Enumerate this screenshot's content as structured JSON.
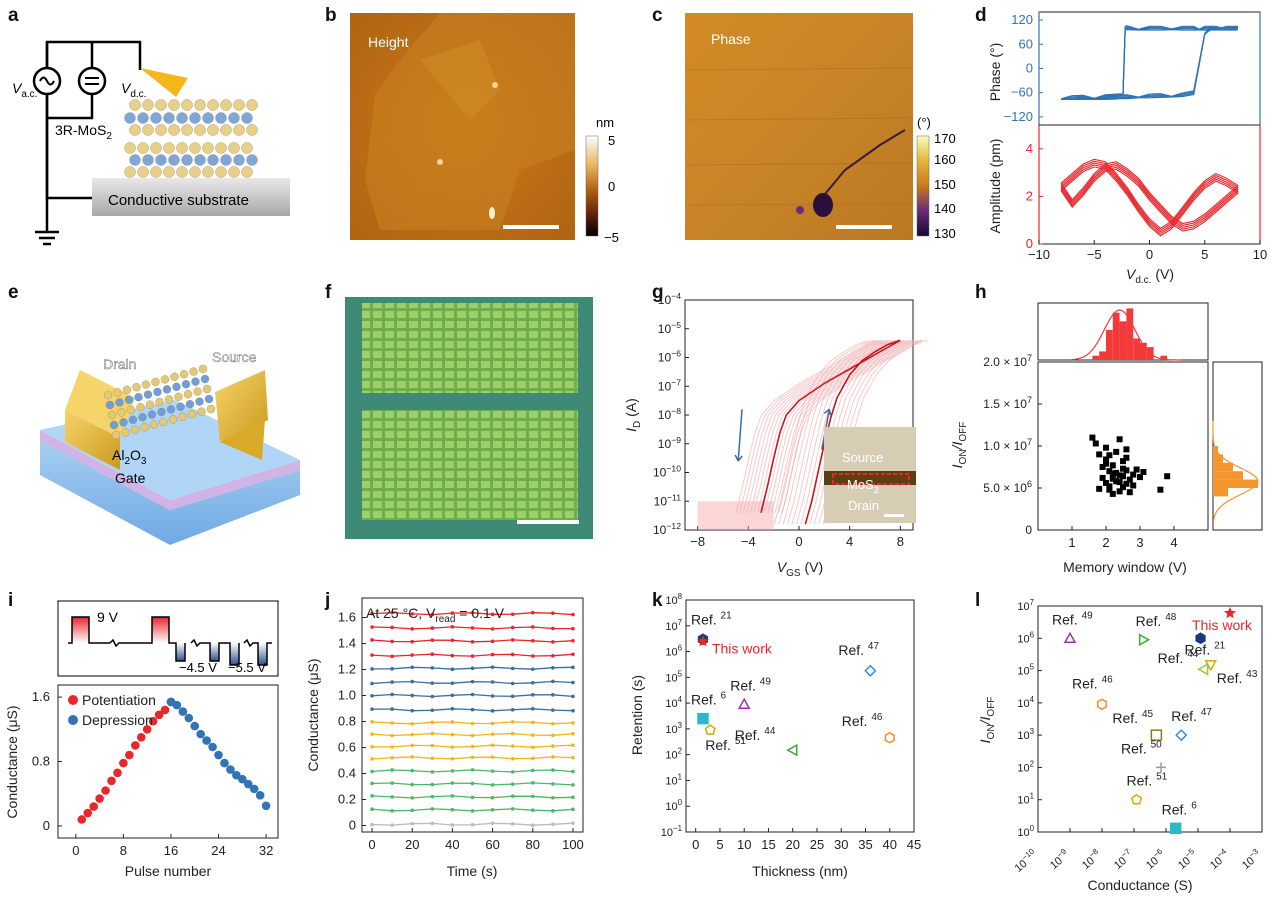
{
  "panel_labels": [
    "a",
    "b",
    "c",
    "d",
    "e",
    "f",
    "g",
    "h",
    "i",
    "j",
    "k",
    "l"
  ],
  "colors": {
    "red": "#e8262b",
    "blue": "#2f74b5",
    "pink": "#f4a3a6",
    "purple": "#9b30b5",
    "green": "#3fa535",
    "orange": "#f0902a",
    "gold": "#d8a800",
    "cyan": "#2bb8c8",
    "skyblue": "#2e8fe0",
    "olive": "#8a7a1a",
    "gray": "#999999",
    "hist_red": "#f23a3a",
    "hist_orange": "#f5952e",
    "dark_blue": "#3a6e9e"
  },
  "panel_a": {
    "vac_label": "V",
    "vac_sub": "a.c.",
    "vdc_label": "V",
    "vdc_sub": "d.c.",
    "material_label": "3R-MoS",
    "material_sub": "2",
    "substrate_label": "Conductive substrate"
  },
  "panel_b": {
    "image_label": "Height",
    "colorbar_unit": "nm",
    "colorbar_ticks": [
      "5",
      "0",
      "−5"
    ]
  },
  "panel_c": {
    "image_label": "Phase",
    "colorbar_unit": "(°)",
    "colorbar_ticks": [
      "170",
      "160",
      "150",
      "140",
      "130"
    ]
  },
  "panel_e": {
    "labels": [
      "Drain",
      "Source",
      "Al",
      "Gate"
    ],
    "oxide": {
      "base": "Al",
      "sub1": "2",
      "mid": "O",
      "sub2": "3"
    }
  },
  "panel_g_inset": {
    "labels": [
      "Source",
      "MoS",
      "Drain"
    ],
    "mos_sub": "2"
  },
  "panel_i_inset": {
    "labels": [
      "9 V",
      "−4.5 V",
      "−5.5 V"
    ]
  },
  "chart_data": [
    {
      "id": "d_phase",
      "type": "line",
      "ylabel": "Phase (°)",
      "ylim": [
        -140,
        140
      ],
      "yticks": [
        "120",
        "60",
        "0",
        "−60",
        "−120"
      ],
      "xlim": [
        -10,
        10
      ],
      "series": [
        {
          "x": [
            -8,
            -7,
            -6,
            -5,
            -4,
            -3,
            -2.4,
            -2.2,
            -2,
            -1,
            0,
            1,
            2,
            3,
            4,
            4.5,
            5,
            5.5,
            6,
            7,
            8,
            7,
            6,
            5.5,
            5,
            4,
            3,
            2,
            1,
            0,
            -1,
            -2,
            -2.4,
            -2.7,
            -3,
            -4,
            -5,
            -6,
            -7,
            -8
          ],
          "y": [
            -72,
            -72,
            -71,
            -71,
            -70,
            -68,
            -60,
            100,
            101,
            100,
            100,
            100,
            101,
            100,
            100,
            100,
            100,
            100,
            100,
            100,
            100,
            100,
            100,
            100,
            90,
            -60,
            -65,
            -66,
            -67,
            -68,
            -68,
            -70,
            -70,
            -70,
            -71,
            -72,
            -72,
            -72,
            -72,
            -72
          ]
        }
      ]
    },
    {
      "id": "d_amplitude",
      "type": "line",
      "xlabel": "V",
      "xlabel_sub": "d.c.",
      "xlabel_unit": " (V)",
      "ylabel": "Amplitude (pm)",
      "xlim": [
        -10,
        10
      ],
      "xticks": [
        "−10",
        "−5",
        "0",
        "5",
        "10"
      ],
      "ylim": [
        0,
        5
      ],
      "yticks": [
        "0",
        "2",
        "4"
      ],
      "series": [
        {
          "x": [
            -8,
            -7,
            -6,
            -5,
            -4,
            -3,
            -2,
            -1,
            0,
            1,
            2,
            3,
            4,
            5,
            6,
            7,
            8,
            7,
            6,
            5,
            4,
            3,
            2,
            1,
            0,
            -1,
            -2,
            -3,
            -4,
            -5,
            -6,
            -7,
            -8
          ],
          "y": [
            2.4,
            2.8,
            3.2,
            3.4,
            3.3,
            2.8,
            2.2,
            1.5,
            0.9,
            0.5,
            0.8,
            1.4,
            2.0,
            2.5,
            2.8,
            2.6,
            2.3,
            1.9,
            1.5,
            1.1,
            0.8,
            0.7,
            1.0,
            1.5,
            2.0,
            2.6,
            3.0,
            3.3,
            3.2,
            2.8,
            2.2,
            1.7,
            2.4
          ]
        }
      ]
    },
    {
      "id": "g_transfer",
      "type": "line",
      "xlabel": "V",
      "xlabel_sub": "GS",
      "xlabel_unit": " (V)",
      "ylabel": "I",
      "ylabel_sub": "D",
      "ylabel_unit": " (A)",
      "xlim": [
        -9,
        9
      ],
      "xticks": [
        "−8",
        "−4",
        "0",
        "4",
        "8"
      ],
      "ylim_log": [
        -12,
        -4
      ],
      "yticks": [
        "10−12",
        "10−11",
        "10−10",
        "10−9",
        "10−8",
        "10−7",
        "10−6",
        "10−5",
        "10−4"
      ],
      "series": [
        {
          "name": "forward",
          "x": [
            0.5,
            1,
            1.5,
            2,
            2.5,
            3,
            4,
            5,
            6,
            7,
            8
          ],
          "y": [
            -11.8,
            -11.0,
            -10.0,
            -9.0,
            -8.1,
            -7.4,
            -6.6,
            -6.1,
            -5.8,
            -5.55,
            -5.4
          ]
        },
        {
          "name": "backward",
          "x": [
            8,
            6,
            4,
            2,
            0,
            -1,
            -1.5,
            -2,
            -2.5,
            -3
          ],
          "y": [
            -5.4,
            -5.9,
            -6.4,
            -6.9,
            -7.5,
            -8.0,
            -8.6,
            -9.5,
            -10.5,
            -11.4
          ]
        }
      ]
    },
    {
      "id": "h_scatter",
      "type": "scatter",
      "xlabel": "Memory window (V)",
      "ylabel": "I",
      "ylabel_sub1": "ON",
      "ylabel_mid": "/I",
      "ylabel_sub2": "OFF",
      "xlim": [
        0,
        5
      ],
      "xticks": [
        "1",
        "2",
        "3",
        "4"
      ],
      "ylim": [
        0,
        20000000
      ],
      "yticks": [
        "0",
        "5.0 × 10",
        "1.0 × 10",
        "1.5 × 10",
        "2.0 × 10"
      ],
      "ytick_exp": "6,7,7,7",
      "x": [
        1.6,
        1.7,
        1.8,
        1.9,
        1.9,
        2.0,
        2.0,
        2.0,
        2.1,
        2.1,
        2.1,
        2.1,
        2.2,
        2.2,
        2.2,
        2.3,
        2.3,
        2.3,
        2.4,
        2.4,
        2.4,
        2.5,
        2.5,
        2.5,
        2.5,
        2.6,
        2.6,
        2.6,
        2.7,
        2.7,
        2.8,
        2.8,
        2.9,
        3.0,
        3.1,
        3.6,
        3.8,
        2.0,
        2.2,
        2.4,
        1.8,
        2.6
      ],
      "y": [
        11000000,
        10300000,
        9000000,
        7500000,
        6200000,
        9800000,
        8400000,
        5600000,
        7000000,
        4800000,
        8900000,
        5200000,
        6100000,
        7700000,
        4300000,
        9300000,
        5800000,
        6800000,
        10800000,
        6500000,
        4600000,
        7300000,
        5100000,
        8200000,
        6400000,
        9600000,
        5500000,
        7100000,
        6000000,
        4500000,
        6600000,
        5300000,
        7200000,
        6300000,
        6900000,
        4800000,
        6400000,
        7900000,
        6700000,
        5700000,
        4900000,
        8600000
      ],
      "hist_top": {
        "bins": [
          1.6,
          1.8,
          2.0,
          2.2,
          2.4,
          2.6,
          2.8,
          3.0,
          3.2,
          3.4,
          3.6,
          3.8
        ],
        "counts": [
          1,
          2,
          7,
          11,
          9,
          12,
          5,
          4,
          3,
          0,
          1,
          0
        ]
      },
      "hist_right": {
        "bins_mid": [
          9500000.0,
          8500000.0,
          7500000.0,
          6500000.0,
          5500000.0,
          4500000.0
        ],
        "counts": [
          1,
          2,
          4,
          6,
          9,
          3
        ]
      }
    },
    {
      "id": "i_conductance",
      "type": "scatter",
      "xlabel": "Pulse number",
      "ylabel": "Conductance (μS)",
      "xlim": [
        -3,
        34
      ],
      "xticks": [
        "0",
        "8",
        "16",
        "24",
        "32"
      ],
      "ylim": [
        -0.15,
        1.75
      ],
      "yticks": [
        "0",
        "0.8",
        "1.6"
      ],
      "series": [
        {
          "name": "Potentiation",
          "x": [
            1,
            2,
            3,
            4,
            5,
            6,
            7,
            8,
            9,
            10,
            11,
            12,
            13,
            14,
            15,
            16
          ],
          "y": [
            0.08,
            0.16,
            0.24,
            0.34,
            0.44,
            0.56,
            0.66,
            0.78,
            0.88,
            1.0,
            1.1,
            1.2,
            1.3,
            1.38,
            1.44,
            1.54
          ]
        },
        {
          "name": "Depression",
          "x": [
            16,
            17,
            18,
            19,
            20,
            21,
            22,
            23,
            24,
            25,
            26,
            27,
            28,
            29,
            30,
            31,
            32
          ],
          "y": [
            1.54,
            1.5,
            1.42,
            1.34,
            1.24,
            1.14,
            1.06,
            0.98,
            0.88,
            0.78,
            0.7,
            0.63,
            0.58,
            0.52,
            0.46,
            0.38,
            0.25
          ]
        }
      ]
    },
    {
      "id": "j_retention",
      "type": "line",
      "title": "At 25 °C, V",
      "title_sub": "read",
      "title_end": " = 0.1 V",
      "xlabel": "Time (s)",
      "ylabel": "Conductance (μS)",
      "xlim": [
        -5,
        105
      ],
      "xticks": [
        "0",
        "20",
        "40",
        "60",
        "80",
        "100"
      ],
      "ylim": [
        -0.05,
        1.75
      ],
      "yticks": [
        "0",
        "0.2",
        "0.4",
        "0.6",
        "0.8",
        "1.0",
        "1.2",
        "1.4",
        "1.6"
      ],
      "x": [
        0,
        10,
        20,
        30,
        40,
        50,
        60,
        70,
        80,
        90,
        100
      ],
      "levels": [
        1.63,
        1.52,
        1.42,
        1.31,
        1.21,
        1.1,
        1.0,
        0.89,
        0.79,
        0.7,
        0.61,
        0.52,
        0.42,
        0.32,
        0.22,
        0.12,
        0.01
      ],
      "level_colors": [
        "#e8262b",
        "#e8262b",
        "#e8262b",
        "#e8262b",
        "#3a6e9e",
        "#3a6e9e",
        "#3a6e9e",
        "#3a6e9e",
        "#f2b51f",
        "#f2b51f",
        "#f2b51f",
        "#f2b51f",
        "#4cb863",
        "#4cb863",
        "#4cb863",
        "#4cb863",
        "#bbbbbb"
      ]
    },
    {
      "id": "k_benchmark",
      "type": "scatter",
      "xlabel": "Thickness (nm)",
      "ylabel": "Retention (s)",
      "xlim": [
        -2,
        45
      ],
      "xticks": [
        "0",
        "5",
        "10",
        "15",
        "20",
        "25",
        "30",
        "35",
        "40",
        "45"
      ],
      "ylim_log": [
        -1,
        8
      ],
      "yticks": [
        "10−1",
        "100",
        "101",
        "102",
        "103",
        "104",
        "105",
        "106",
        "107",
        "108"
      ],
      "points": [
        {
          "label": "Ref. 21",
          "x": 1.5,
          "y": 3000000,
          "shape": "hexagon",
          "color": "#1a3a7a"
        },
        {
          "label": "This work",
          "x": 1.5,
          "y": 2500000,
          "shape": "star",
          "color": "#e8262b"
        },
        {
          "label": "Ref. 6",
          "x": 1.5,
          "y": 2500,
          "shape": "square",
          "color": "#2bb8c8"
        },
        {
          "label": "Ref. 51",
          "x": 3,
          "y": 900,
          "shape": "pentagon",
          "color": "#d8a800"
        },
        {
          "label": "Ref. 49",
          "x": 10,
          "y": 9000,
          "shape": "triangle",
          "color": "#9b30b5"
        },
        {
          "label": "Ref. 44",
          "x": 20,
          "y": 150,
          "shape": "triangle-left",
          "color": "#3fa535"
        },
        {
          "label": "Ref. 47",
          "x": 36,
          "y": 180000,
          "shape": "diamond",
          "color": "#2e8fe0"
        },
        {
          "label": "Ref. 46",
          "x": 40,
          "y": 450,
          "shape": "hexagon",
          "color": "#f0902a"
        }
      ]
    },
    {
      "id": "l_benchmark",
      "type": "scatter",
      "xlabel": "Conductance (S)",
      "ylabel": "I",
      "ylabel_sub1": "ON",
      "ylabel_mid": "/I",
      "ylabel_sub2": "OFF",
      "xlim_log": [
        -10,
        -3
      ],
      "ylim_log": [
        0,
        7
      ],
      "xticks": [
        "10−10",
        "10−9",
        "10−8",
        "10−7",
        "10−6",
        "10−5",
        "10−4",
        "10−3"
      ],
      "yticks": [
        "100",
        "101",
        "102",
        "103",
        "104",
        "105",
        "106",
        "107"
      ],
      "points": [
        {
          "label": "This work",
          "x": 0.0001,
          "y": 6000000,
          "shape": "star",
          "color": "#e8262b"
        },
        {
          "label": "Ref. 21",
          "x": 1.2e-05,
          "y": 1000000,
          "shape": "hexagon",
          "color": "#1a3a7a"
        },
        {
          "label": "Ref. 49",
          "x": 1e-09,
          "y": 1000000,
          "shape": "triangle",
          "color": "#9b30b5"
        },
        {
          "label": "Ref. 48",
          "x": 2e-07,
          "y": 900000,
          "shape": "triangle-right",
          "color": "#3fa535"
        },
        {
          "label": "Ref. 43",
          "x": 2.5e-05,
          "y": 150000,
          "shape": "triangle-down",
          "color": "#d8a800"
        },
        {
          "label": "Ref. 44",
          "x": 1.5e-05,
          "y": 110000,
          "shape": "triangle-left",
          "color": "#8fcf3a"
        },
        {
          "label": "Ref. 46",
          "x": 1e-08,
          "y": 9000,
          "shape": "hexagon",
          "color": "#f0902a"
        },
        {
          "label": "Ref. 45",
          "x": 5e-07,
          "y": 1000,
          "shape": "square-open",
          "color": "#8a7a1a"
        },
        {
          "label": "Ref. 47",
          "x": 3e-06,
          "y": 1000,
          "shape": "diamond",
          "color": "#2e8fe0"
        },
        {
          "label": "Ref. 50",
          "x": 7e-07,
          "y": 100,
          "shape": "plus",
          "color": "#999999"
        },
        {
          "label": "Ref. 51",
          "x": 1.2e-07,
          "y": 10,
          "shape": "pentagon",
          "color": "#d8a800"
        },
        {
          "label": "Ref. 6",
          "x": 2e-06,
          "y": 1.3,
          "shape": "square",
          "color": "#2bb8c8"
        }
      ]
    }
  ]
}
